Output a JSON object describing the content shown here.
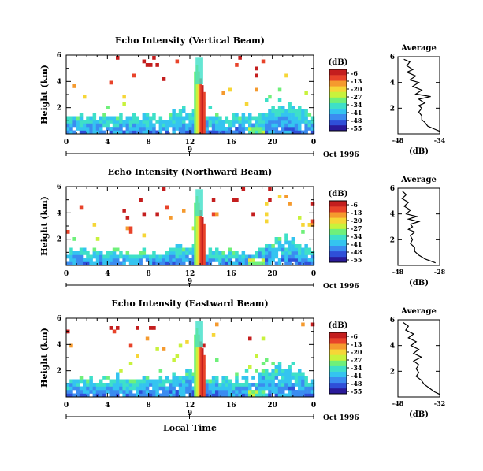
{
  "colors": {
    "colorbar": [
      "#2a1a9a",
      "#2f4fd8",
      "#3b8cf0",
      "#34c4f0",
      "#3ee0c8",
      "#6ff07a",
      "#c8f23c",
      "#f6d637",
      "#f59a2e",
      "#e8432a",
      "#c41e1e"
    ],
    "panel_background": "#ffffff",
    "profile_line": "#000000"
  },
  "shared": {
    "ylabel": "Height (km)",
    "colorbar_unit": "(dB)",
    "colorbar_ticks": [
      "-6",
      "-13",
      "-20",
      "-27",
      "-34",
      "-41",
      "-48",
      "-55"
    ],
    "date_label": "Oct 1996",
    "day_marker": "9",
    "x_ticks": [
      "0",
      "4",
      "8",
      "12",
      "16",
      "20",
      "0"
    ],
    "y_ticks": [
      "6",
      "4",
      "2"
    ],
    "profile_title": "Average",
    "profile_xlabel": "(dB)",
    "xlabel": "Local Time"
  },
  "chart_data": [
    {
      "type": "heatmap",
      "title": "Echo Intensity (Vertical Beam)",
      "x_range_hours": [
        0,
        24
      ],
      "y_range_km": [
        0,
        6
      ],
      "color_range_db": [
        -55,
        -6
      ],
      "features": {
        "boundary_layer_top_km": 1.6,
        "strong_column_start_hour": 12.4,
        "strong_column_end_hour": 13.6,
        "strong_column_top_km": 5.8,
        "afternoon_rise_start_hour": 18.0
      },
      "profile": {
        "xlim": [
          -48,
          -34
        ],
        "x_ticks": [
          "-48",
          "-34"
        ],
        "heights_km": [
          5.8,
          5.6,
          5.3,
          5.0,
          4.8,
          4.5,
          4.2,
          4.0,
          3.7,
          3.4,
          3.1,
          2.9,
          2.7,
          2.4,
          2.2,
          2.0,
          1.7,
          1.4,
          1.1,
          0.9,
          0.6,
          0.4,
          0.2
        ],
        "values_db": [
          -46,
          -44,
          -45,
          -43,
          -45,
          -42,
          -44,
          -41,
          -43,
          -40,
          -42,
          -37,
          -41,
          -39,
          -41,
          -40,
          -41,
          -40,
          -40,
          -39,
          -38,
          -36,
          -34
        ]
      }
    },
    {
      "type": "heatmap",
      "title": "Echo Intensity (Northward Beam)",
      "x_range_hours": [
        0,
        24
      ],
      "y_range_km": [
        0,
        6
      ],
      "color_range_db": [
        -55,
        -6
      ],
      "features": {
        "boundary_layer_top_km": 1.3,
        "strong_column_start_hour": 12.4,
        "strong_column_end_hour": 13.6,
        "strong_column_top_km": 5.8,
        "afternoon_rise_start_hour": 18.0
      },
      "profile": {
        "xlim": [
          -48,
          -28
        ],
        "x_ticks": [
          "-48",
          "-28"
        ],
        "heights_km": [
          5.8,
          5.5,
          5.2,
          4.9,
          4.6,
          4.3,
          4.0,
          3.8,
          3.6,
          3.4,
          3.2,
          3.0,
          2.8,
          2.6,
          2.3,
          2.0,
          1.7,
          1.4,
          1.1,
          0.8,
          0.5,
          0.2
        ],
        "values_db": [
          -46,
          -44,
          -46,
          -43,
          -45,
          -42,
          -44,
          -39,
          -43,
          -38,
          -42,
          -41,
          -43,
          -40,
          -42,
          -41,
          -42,
          -40,
          -40,
          -38,
          -35,
          -30
        ]
      }
    },
    {
      "type": "heatmap",
      "title": "Echo Intensity (Eastward Beam)",
      "x_range_hours": [
        0,
        24
      ],
      "y_range_km": [
        0,
        6
      ],
      "color_range_db": [
        -55,
        -6
      ],
      "features": {
        "boundary_layer_top_km": 1.7,
        "strong_column_start_hour": 12.4,
        "strong_column_end_hour": 13.6,
        "strong_column_top_km": 5.8,
        "afternoon_rise_start_hour": 18.0
      },
      "profile": {
        "xlim": [
          -48,
          -32
        ],
        "x_ticks": [
          "-48",
          "-32"
        ],
        "heights_km": [
          5.8,
          5.5,
          5.2,
          4.9,
          4.6,
          4.3,
          4.0,
          3.7,
          3.4,
          3.1,
          2.8,
          2.5,
          2.2,
          1.9,
          1.6,
          1.3,
          1.0,
          0.7,
          0.4,
          0.2
        ],
        "values_db": [
          -46,
          -44,
          -45,
          -42,
          -44,
          -41,
          -43,
          -40,
          -42,
          -39,
          -42,
          -40,
          -41,
          -40,
          -41,
          -39,
          -38,
          -36,
          -34,
          -32
        ]
      }
    }
  ]
}
